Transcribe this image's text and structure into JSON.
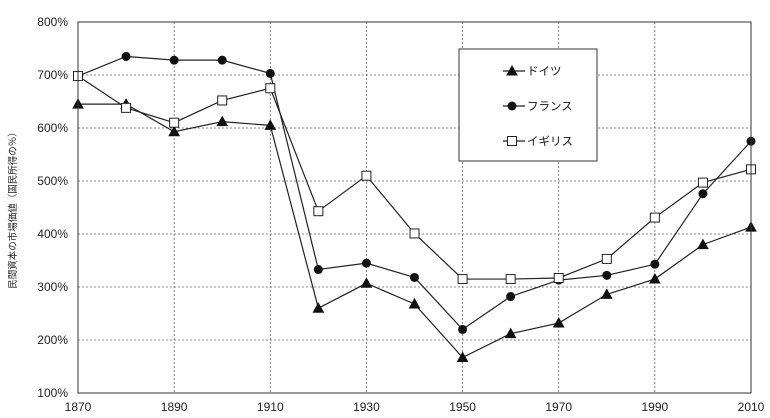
{
  "chart_data": {
    "type": "line",
    "title": "",
    "xlabel": "",
    "ylabel": "民間資本の市場価値（国民所得の％）",
    "x": [
      1870,
      1880,
      1890,
      1900,
      1910,
      1920,
      1930,
      1940,
      1950,
      1960,
      1970,
      1980,
      1990,
      2000,
      2010
    ],
    "xticks": [
      "1870",
      "1890",
      "1910",
      "1930",
      "1950",
      "1970",
      "1990",
      "2010"
    ],
    "yticks": [
      "100%",
      "200%",
      "300%",
      "400%",
      "500%",
      "600%",
      "700%",
      "800%"
    ],
    "xlim": [
      1870,
      2010
    ],
    "ylim": [
      100,
      800
    ],
    "grid": true,
    "legend_position": "top-right",
    "series": [
      {
        "name": "ドイツ",
        "marker": "triangle",
        "values": [
          645,
          645,
          593,
          612,
          605,
          260,
          307,
          268,
          167,
          212,
          232,
          286,
          315,
          380,
          413
        ]
      },
      {
        "name": "フランス",
        "marker": "circle",
        "values": [
          698,
          735,
          728,
          728,
          703,
          333,
          345,
          318,
          220,
          282,
          313,
          322,
          343,
          476,
          575
        ]
      },
      {
        "name": "イギリス",
        "marker": "square-open",
        "values": [
          698,
          638,
          610,
          652,
          675,
          443,
          510,
          401,
          315,
          315,
          317,
          353,
          431,
          497,
          522
        ]
      }
    ]
  }
}
